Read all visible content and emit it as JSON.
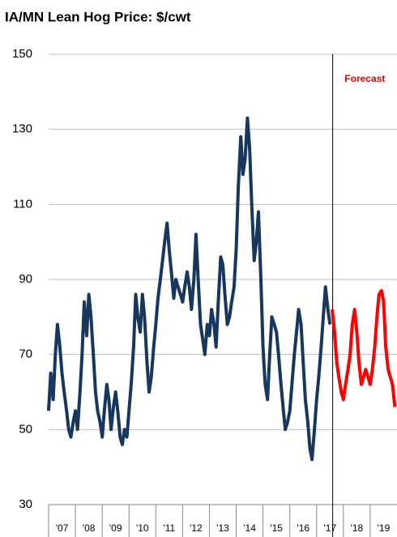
{
  "chart_data": {
    "type": "line",
    "title": "IA/MN Lean Hog Price: $/cwt",
    "xlim": [
      2007,
      2020
    ],
    "ylim": [
      30,
      150
    ],
    "yticks": [
      30,
      50,
      70,
      90,
      110,
      130,
      150
    ],
    "grid": true,
    "xticks": [
      {
        "value": 2007.5,
        "label": "'07"
      },
      {
        "value": 2008.5,
        "label": "'08"
      },
      {
        "value": 2009.5,
        "label": "'09"
      },
      {
        "value": 2010.5,
        "label": "'10"
      },
      {
        "value": 2011.5,
        "label": "'11"
      },
      {
        "value": 2012.5,
        "label": "'12"
      },
      {
        "value": 2013.5,
        "label": "'13"
      },
      {
        "value": 2014.5,
        "label": "'14"
      },
      {
        "value": 2015.5,
        "label": "'15"
      },
      {
        "value": 2016.5,
        "label": "'16"
      },
      {
        "value": 2017.5,
        "label": "'17"
      },
      {
        "value": 2018.5,
        "label": "'18"
      },
      {
        "value": 2019.5,
        "label": "'19"
      }
    ],
    "vline": 2017.6,
    "annotation": "Forecast",
    "x": [
      2007.0,
      2007.08,
      2007.17,
      2007.25,
      2007.33,
      2007.42,
      2007.5,
      2007.58,
      2007.67,
      2007.75,
      2007.83,
      2007.92,
      2008.0,
      2008.08,
      2008.17,
      2008.25,
      2008.33,
      2008.42,
      2008.5,
      2008.58,
      2008.67,
      2008.75,
      2008.83,
      2008.92,
      2009.0,
      2009.08,
      2009.17,
      2009.25,
      2009.33,
      2009.42,
      2009.5,
      2009.58,
      2009.67,
      2009.75,
      2009.83,
      2009.92,
      2010.0,
      2010.08,
      2010.17,
      2010.25,
      2010.33,
      2010.42,
      2010.5,
      2010.58,
      2010.67,
      2010.75,
      2010.83,
      2010.92,
      2011.0,
      2011.08,
      2011.17,
      2011.25,
      2011.33,
      2011.42,
      2011.5,
      2011.58,
      2011.67,
      2011.75,
      2011.83,
      2011.92,
      2012.0,
      2012.08,
      2012.17,
      2012.25,
      2012.33,
      2012.42,
      2012.5,
      2012.58,
      2012.67,
      2012.75,
      2012.83,
      2012.92,
      2013.0,
      2013.08,
      2013.17,
      2013.25,
      2013.33,
      2013.42,
      2013.5,
      2013.58,
      2013.67,
      2013.75,
      2013.83,
      2013.92,
      2014.0,
      2014.08,
      2014.17,
      2014.25,
      2014.33,
      2014.42,
      2014.5,
      2014.58,
      2014.67,
      2014.75,
      2014.83,
      2014.92,
      2015.0,
      2015.08,
      2015.17,
      2015.25,
      2015.33,
      2015.42,
      2015.5,
      2015.58,
      2015.67,
      2015.75,
      2015.83,
      2015.92,
      2016.0,
      2016.08,
      2016.17,
      2016.25,
      2016.33,
      2016.42,
      2016.5,
      2016.58,
      2016.67,
      2016.75,
      2016.83,
      2016.92,
      2017.0,
      2017.08,
      2017.17,
      2017.25,
      2017.33,
      2017.42,
      2017.5,
      2017.58,
      2017.67,
      2017.75,
      2017.83,
      2017.92,
      2018.0,
      2018.08,
      2018.17,
      2018.25,
      2018.33,
      2018.42,
      2018.5,
      2018.58,
      2018.67,
      2018.75,
      2018.83,
      2018.92,
      2019.0,
      2019.08,
      2019.17,
      2019.25,
      2019.33,
      2019.42,
      2019.5,
      2019.58,
      2019.67,
      2019.75,
      2019.83,
      2019.92
    ],
    "series": [
      {
        "color": "#17375e",
        "values": [
          55,
          65,
          58,
          70,
          78,
          72,
          65,
          60,
          55,
          50,
          48,
          52,
          55,
          50,
          60,
          70,
          84,
          75,
          86,
          80,
          70,
          60,
          55,
          52,
          48,
          55,
          62,
          58,
          50,
          56,
          60,
          55,
          48,
          46,
          50,
          48,
          55,
          62,
          72,
          86,
          80,
          76,
          86,
          80,
          68,
          60,
          64,
          72,
          78,
          85,
          90,
          95,
          100,
          105,
          98,
          92,
          85,
          90,
          88,
          86,
          84,
          88,
          92,
          88,
          82,
          90,
          102,
          90,
          78,
          74,
          70,
          78,
          75,
          82,
          78,
          72,
          84,
          96,
          94,
          86,
          78,
          80,
          84,
          88,
          98,
          115,
          128,
          118,
          122,
          133,
          125,
          110,
          95,
          100,
          108,
          90,
          72,
          62,
          58,
          70,
          80,
          78,
          76,
          70,
          62,
          56,
          50,
          52,
          55,
          62,
          70,
          76,
          82,
          78,
          68,
          58,
          52,
          45,
          42,
          50,
          58,
          64,
          72,
          80,
          88,
          82,
          78,
          null,
          null,
          null,
          null,
          null,
          null,
          null,
          null,
          null,
          null,
          null,
          null,
          null,
          null,
          null,
          null,
          null,
          null,
          null,
          null,
          null,
          null,
          null,
          null,
          null,
          null,
          null,
          null,
          null
        ]
      },
      {
        "color": "#ff0000",
        "values": [
          null,
          null,
          null,
          null,
          null,
          null,
          null,
          null,
          null,
          null,
          null,
          null,
          null,
          null,
          null,
          null,
          null,
          null,
          null,
          null,
          null,
          null,
          null,
          null,
          null,
          null,
          null,
          null,
          null,
          null,
          null,
          null,
          null,
          null,
          null,
          null,
          null,
          null,
          null,
          null,
          null,
          null,
          null,
          null,
          null,
          null,
          null,
          null,
          null,
          null,
          null,
          null,
          null,
          null,
          null,
          null,
          null,
          null,
          null,
          null,
          null,
          null,
          null,
          null,
          null,
          null,
          null,
          null,
          null,
          null,
          null,
          null,
          null,
          null,
          null,
          null,
          null,
          null,
          null,
          null,
          null,
          null,
          null,
          null,
          null,
          null,
          null,
          null,
          null,
          null,
          null,
          null,
          null,
          null,
          null,
          null,
          null,
          null,
          null,
          null,
          null,
          null,
          null,
          null,
          null,
          null,
          null,
          null,
          null,
          null,
          null,
          null,
          null,
          null,
          null,
          null,
          null,
          null,
          null,
          null,
          null,
          null,
          null,
          null,
          null,
          null,
          null,
          82,
          76,
          68,
          64,
          60,
          58,
          62,
          66,
          70,
          78,
          82,
          76,
          68,
          62,
          64,
          66,
          64,
          62,
          66,
          72,
          80,
          86,
          87,
          84,
          72,
          66,
          64,
          62,
          56
        ]
      }
    ]
  }
}
